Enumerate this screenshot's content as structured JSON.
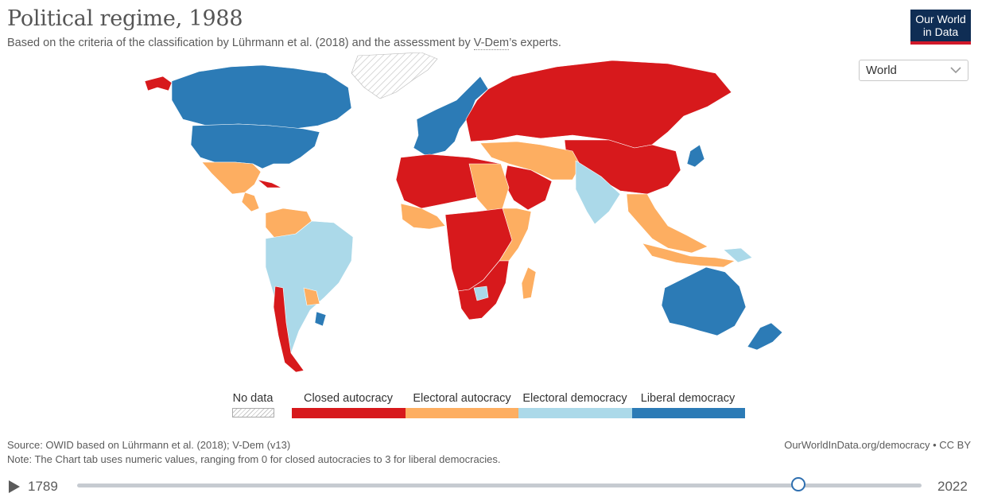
{
  "header": {
    "title": "Political regime, 1988",
    "subtitle_before": "Based on the criteria of the classification by Lührmann et al. (2018) and the assessment by ",
    "subtitle_link": "V-Dem",
    "subtitle_after": "’s experts.",
    "logo_line1": "Our World",
    "logo_line2": "in Data"
  },
  "region_selector": {
    "value": "World"
  },
  "colors": {
    "closed_autocracy": "#d7191c",
    "electoral_autocracy": "#fdae61",
    "electoral_democracy": "#abd9e9",
    "liberal_democracy": "#2c7bb6",
    "no_data": "#d9d9d9",
    "logo_bg": "#0f2d54",
    "logo_accent": "#d1192a"
  },
  "legend": {
    "no_data_label": "No data",
    "categories": [
      {
        "label": "Closed autocracy",
        "color": "#d7191c"
      },
      {
        "label": "Electoral autocracy",
        "color": "#fdae61"
      },
      {
        "label": "Electoral democracy",
        "color": "#abd9e9"
      },
      {
        "label": "Liberal democracy",
        "color": "#2c7bb6"
      }
    ]
  },
  "footer": {
    "source": "Source: OWID based on Lührmann et al. (2018); V-Dem (v13)",
    "note": "Note: The Chart tab uses numeric values, ranging from 0 for closed autocracies to 3 for liberal democracies.",
    "link": "OurWorldInData.org/democracy • CC BY"
  },
  "timeline": {
    "start_label": "1789",
    "end_label": "2022",
    "start": 1789,
    "end": 2022,
    "current": 1988
  }
}
